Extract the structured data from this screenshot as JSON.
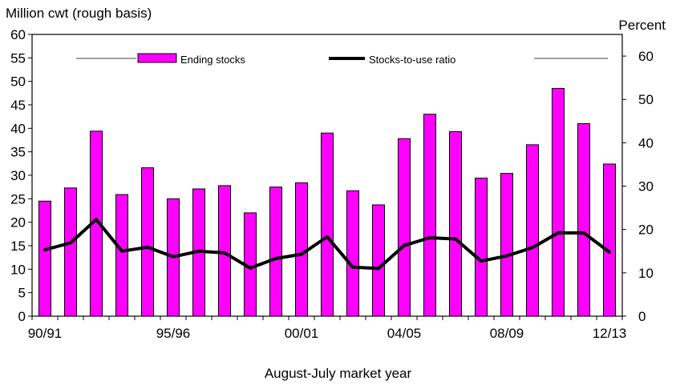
{
  "chart_data": {
    "type": "bar",
    "ylabel_left": "Million cwt (rough basis)",
    "ylabel_right": "Percent",
    "xlabel": "August-July market year",
    "x_tick_labels": [
      "90/91",
      "95/96",
      "00/01",
      "04/05",
      "08/09",
      "12/13"
    ],
    "categories": [
      "90/91",
      "91/92",
      "92/93",
      "93/94",
      "94/95",
      "95/96",
      "96/97",
      "97/98",
      "98/99",
      "99/00",
      "00/01",
      "01/02",
      "02/03",
      "03/04",
      "04/05",
      "05/06",
      "06/07",
      "07/08",
      "08/09",
      "09/10",
      "10/11",
      "11/12",
      "12/13"
    ],
    "y_left_ticks": [
      "0",
      "5",
      "10",
      "15",
      "20",
      "25",
      "30",
      "35",
      "40",
      "45",
      "50",
      "55",
      "60"
    ],
    "y_right_ticks": [
      "0",
      "10",
      "20",
      "30",
      "40",
      "50",
      "60"
    ],
    "ylim_left": [
      0,
      60
    ],
    "ylim_right": [
      0,
      65
    ],
    "series": [
      {
        "name": "Ending stocks",
        "axis": "left",
        "kind": "bar",
        "color": "#ff00ff",
        "values": [
          24.5,
          27.3,
          39.4,
          25.9,
          31.6,
          25.0,
          27.1,
          27.8,
          22.0,
          27.5,
          28.4,
          39.0,
          26.7,
          23.7,
          37.8,
          43.0,
          39.3,
          29.4,
          30.4,
          36.5,
          48.5,
          41.0,
          32.4
        ]
      },
      {
        "name": "Stocks-to-use ratio",
        "axis": "right",
        "kind": "line",
        "color": "#000000",
        "values": [
          15.3,
          16.9,
          22.3,
          15.0,
          15.9,
          13.7,
          15.0,
          14.6,
          11.1,
          13.3,
          14.3,
          18.3,
          11.3,
          11.0,
          16.3,
          18.1,
          17.8,
          12.7,
          13.9,
          15.8,
          19.2,
          19.2,
          14.8
        ]
      }
    ],
    "legend_position": "top-center",
    "grid": false
  }
}
